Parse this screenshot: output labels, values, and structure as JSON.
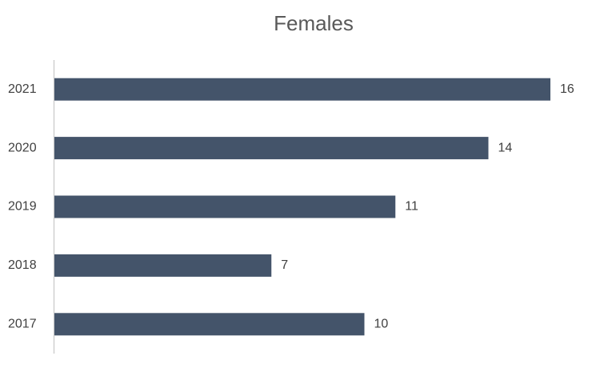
{
  "chart_data": {
    "type": "bar",
    "orientation": "horizontal",
    "title": "Females",
    "categories": [
      "2021",
      "2020",
      "2019",
      "2018",
      "2017"
    ],
    "values": [
      16,
      14,
      11,
      7,
      10
    ],
    "color": "#44546a"
  }
}
